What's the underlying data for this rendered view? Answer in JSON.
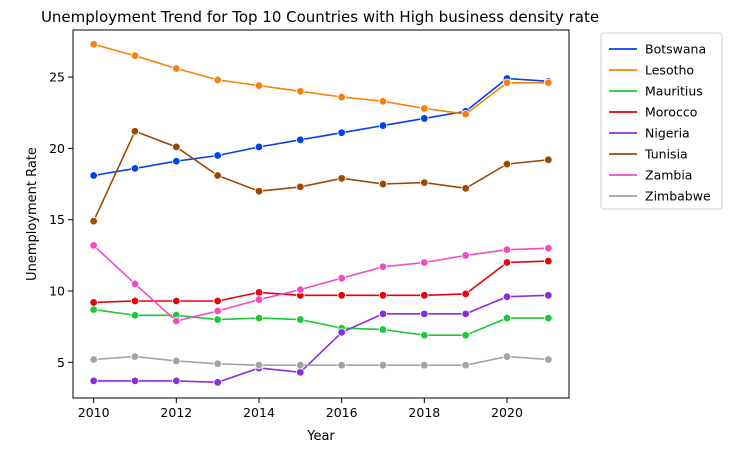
{
  "chart_data": {
    "type": "line",
    "title": "Unemployment Trend for Top 10 Countries with High business density rate",
    "xlabel": "Year",
    "ylabel": "Unemployment Rate",
    "xlim": [
      2009.5,
      2021.5
    ],
    "ylim": [
      2.5,
      28.3
    ],
    "xticks": [
      "2010",
      "2012",
      "2014",
      "2016",
      "2018",
      "2020"
    ],
    "yticks": [
      "5",
      "10",
      "15",
      "20",
      "25"
    ],
    "grid": false,
    "legend_position": "outside-right",
    "x": [
      2010,
      2011,
      2012,
      2013,
      2014,
      2015,
      2016,
      2017,
      2018,
      2019,
      2020,
      2021
    ],
    "series": [
      {
        "name": "Botswana",
        "color": "#0043ec",
        "values": [
          18.1,
          18.6,
          19.1,
          19.5,
          20.1,
          20.6,
          21.1,
          21.6,
          22.1,
          22.6,
          24.9,
          24.7
        ]
      },
      {
        "name": "Lesotho",
        "color": "#f5820a",
        "values": [
          27.3,
          26.5,
          25.6,
          24.8,
          24.4,
          24.0,
          23.6,
          23.3,
          22.8,
          22.4,
          24.6,
          24.6
        ]
      },
      {
        "name": "Mauritius",
        "color": "#1ac938",
        "values": [
          8.7,
          8.3,
          8.3,
          8.0,
          8.1,
          8.0,
          7.4,
          7.3,
          6.9,
          6.9,
          8.1,
          8.1
        ]
      },
      {
        "name": "Morocco",
        "color": "#e8000b",
        "values": [
          9.2,
          9.3,
          9.3,
          9.3,
          9.9,
          9.7,
          9.7,
          9.7,
          9.7,
          9.8,
          12.0,
          12.1
        ]
      },
      {
        "name": "Nigeria",
        "color": "#8b2be2",
        "values": [
          3.7,
          3.7,
          3.7,
          3.6,
          4.6,
          4.3,
          7.1,
          8.4,
          8.4,
          8.4,
          9.6,
          9.7
        ]
      },
      {
        "name": "Tunisia",
        "color": "#9f4800",
        "values": [
          14.9,
          21.2,
          20.1,
          18.1,
          17.0,
          17.3,
          17.9,
          17.5,
          17.6,
          17.2,
          18.9,
          19.2
        ]
      },
      {
        "name": "Zambia",
        "color": "#f14cc1",
        "values": [
          13.2,
          10.5,
          7.9,
          8.6,
          9.4,
          10.1,
          10.9,
          11.7,
          12.0,
          12.5,
          12.9,
          13.0
        ]
      },
      {
        "name": "Zimbabwe",
        "color": "#a3a3a3",
        "values": [
          5.2,
          5.4,
          5.1,
          4.9,
          4.8,
          4.8,
          4.8,
          4.8,
          4.8,
          4.8,
          5.4,
          5.2
        ]
      }
    ]
  }
}
